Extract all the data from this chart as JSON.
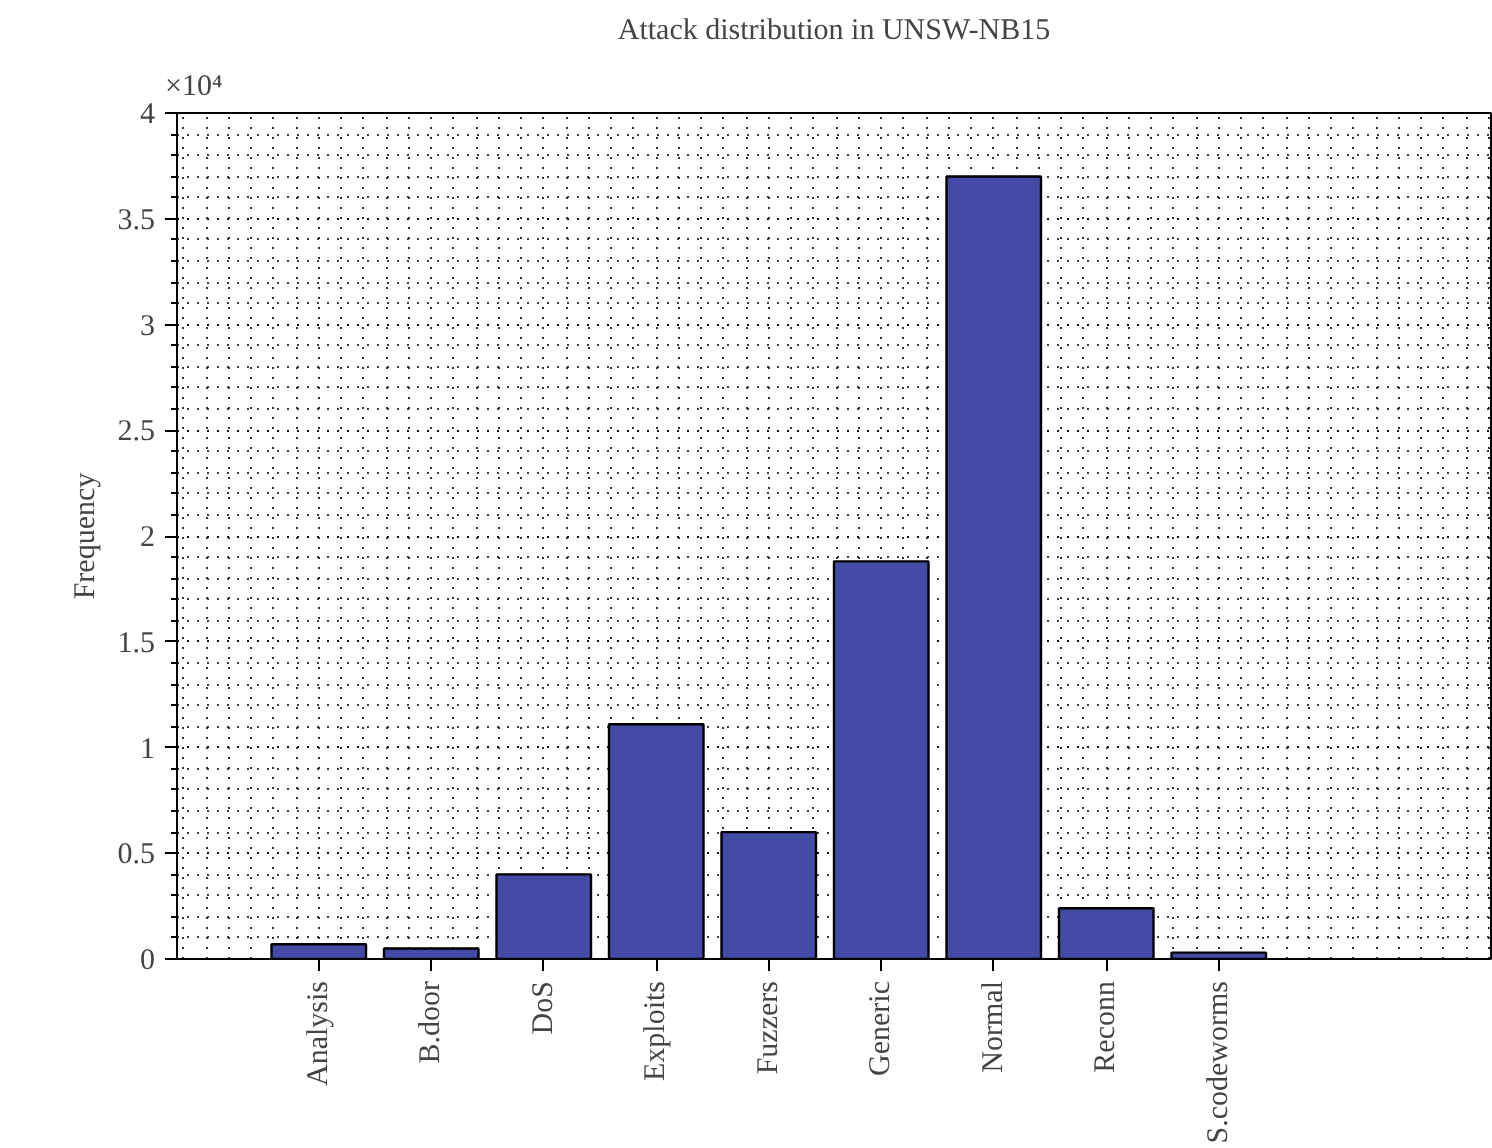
{
  "chart_data": {
    "type": "bar",
    "title": "Attack distribution in UNSW-NB15",
    "ylabel": "Frequency",
    "categories": [
      "Analysis",
      "B.door",
      "DoS",
      "Exploits",
      "Fuzzers",
      "Generic",
      "Normal",
      "Reconn",
      "S.codeworms"
    ],
    "values": [
      0.07,
      0.05,
      0.4,
      1.11,
      0.6,
      1.88,
      3.7,
      0.24,
      0.03
    ],
    "color": "#434ba5",
    "ylim": [
      0,
      4
    ],
    "yticks": [
      0,
      0.5,
      1,
      1.5,
      2,
      2.5,
      3,
      3.5,
      4
    ],
    "grid": true,
    "annotations": [
      "×10⁴"
    ]
  }
}
